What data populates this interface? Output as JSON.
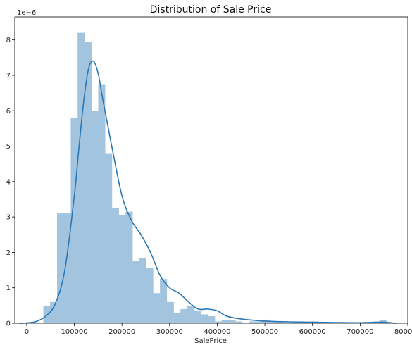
{
  "chart_data": {
    "type": "bar",
    "title": "Distribution of Sale Price",
    "xlabel": "SalePrice",
    "ylabel": "",
    "y_offset_label": "1e−6",
    "xlim": [
      -25000,
      800000
    ],
    "ylim": [
      0,
      8.65
    ],
    "x_ticks": [
      0,
      100000,
      200000,
      300000,
      400000,
      500000,
      600000,
      700000,
      800000
    ],
    "x_tick_labels": [
      "0",
      "100000",
      "200000",
      "300000",
      "400000",
      "500000",
      "600000",
      "700000",
      "800000"
    ],
    "y_ticks": [
      0,
      1,
      2,
      3,
      4,
      5,
      6,
      7,
      8
    ],
    "y_tick_labels": [
      "0",
      "1",
      "2",
      "3",
      "4",
      "5",
      "6",
      "7",
      "8"
    ],
    "bar_color": "#a3c4de",
    "line_color": "#2a77b5",
    "series": [
      {
        "kind": "histogram",
        "bin_start": 34900,
        "bin_width": 14400,
        "values": [
          0.5,
          0.6,
          3.1,
          3.1,
          5.8,
          8.2,
          7.95,
          6.0,
          6.75,
          4.8,
          3.25,
          3.05,
          3.15,
          1.75,
          1.85,
          1.55,
          0.85,
          1.25,
          0.6,
          0.3,
          0.4,
          0.5,
          0.35,
          0.25,
          0.2,
          0.05,
          0.1,
          0.1,
          0.05,
          0.0,
          0.05,
          0.05,
          0.1,
          0.05,
          0.05,
          0.0,
          0.0,
          0.0,
          0.0,
          0.05,
          0.0,
          0.0,
          0.0,
          0.0,
          0.0,
          0.0,
          0.0,
          0.0,
          0.05,
          0.1
        ]
      },
      {
        "kind": "kde",
        "x": [
          -15000,
          0,
          20000,
          40000,
          60000,
          80000,
          100000,
          110000,
          120000,
          130000,
          140000,
          150000,
          160000,
          170000,
          180000,
          200000,
          220000,
          240000,
          260000,
          280000,
          300000,
          320000,
          340000,
          360000,
          380000,
          400000,
          420000,
          450000,
          500000,
          550000,
          600000,
          650000,
          700000,
          750000,
          775000
        ],
        "y": [
          0.0,
          0.01,
          0.05,
          0.2,
          0.55,
          1.5,
          3.6,
          5.0,
          6.3,
          7.2,
          7.4,
          7.05,
          6.3,
          5.6,
          4.9,
          3.6,
          2.9,
          2.5,
          2.0,
          1.35,
          1.0,
          0.85,
          0.6,
          0.4,
          0.4,
          0.35,
          0.2,
          0.12,
          0.06,
          0.04,
          0.03,
          0.02,
          0.015,
          0.03,
          0.0
        ]
      }
    ]
  }
}
